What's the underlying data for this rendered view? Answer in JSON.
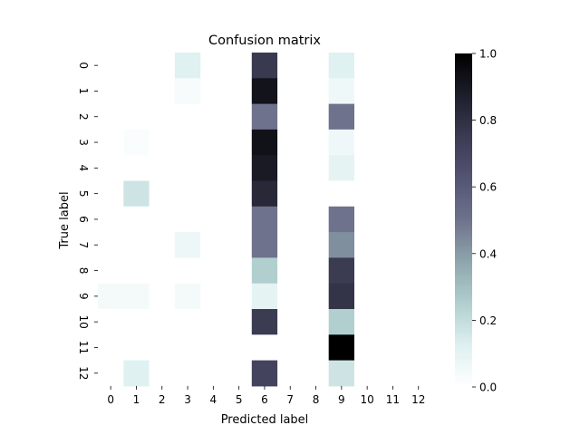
{
  "chart_data": {
    "type": "heatmap",
    "title": "Confusion matrix",
    "xlabel": "Predicted label",
    "ylabel": "True label",
    "x_categories": [
      "0",
      "1",
      "2",
      "3",
      "4",
      "5",
      "6",
      "7",
      "8",
      "9",
      "10",
      "11",
      "12"
    ],
    "y_categories": [
      "0",
      "1",
      "2",
      "3",
      "4",
      "5",
      "6",
      "7",
      "8",
      "9",
      "10",
      "11",
      "12"
    ],
    "values": [
      [
        0,
        0,
        0,
        0.12,
        0,
        0,
        0.76,
        0,
        0,
        0.12,
        0,
        0,
        0
      ],
      [
        0,
        0,
        0,
        0.03,
        0,
        0,
        0.92,
        0,
        0,
        0.06,
        0,
        0,
        0
      ],
      [
        0,
        0,
        0,
        0,
        0,
        0,
        0.5,
        0,
        0,
        0.5,
        0,
        0,
        0
      ],
      [
        0,
        0.02,
        0,
        0,
        0,
        0,
        0.93,
        0,
        0,
        0.06,
        0,
        0,
        0
      ],
      [
        0,
        0,
        0,
        0,
        0,
        0,
        0.89,
        0,
        0,
        0.1,
        0,
        0,
        0
      ],
      [
        0,
        0.17,
        0,
        0,
        0,
        0,
        0.83,
        0,
        0,
        0,
        0,
        0,
        0
      ],
      [
        0,
        0,
        0,
        0,
        0,
        0,
        0.5,
        0,
        0,
        0.5,
        0,
        0,
        0
      ],
      [
        0,
        0,
        0,
        0.07,
        0,
        0,
        0.5,
        0,
        0,
        0.43,
        0,
        0,
        0
      ],
      [
        0,
        0,
        0,
        0,
        0,
        0,
        0.25,
        0,
        0,
        0.75,
        0,
        0,
        0
      ],
      [
        0.04,
        0.04,
        0,
        0.04,
        0,
        0,
        0.1,
        0,
        0,
        0.78,
        0,
        0,
        0
      ],
      [
        0,
        0,
        0,
        0,
        0,
        0,
        0.75,
        0,
        0,
        0.25,
        0,
        0,
        0
      ],
      [
        0,
        0,
        0,
        0,
        0,
        0,
        0,
        0,
        0,
        1.0,
        0,
        0,
        0
      ],
      [
        0,
        0.12,
        0,
        0,
        0,
        0,
        0.71,
        0,
        0,
        0.17,
        0,
        0,
        0
      ]
    ],
    "colormap": "bone_r",
    "colorbar": {
      "range": [
        0.0,
        1.0
      ],
      "ticks": [
        0.0,
        0.2,
        0.4,
        0.6,
        0.8,
        1.0
      ],
      "tick_labels": [
        "0.0",
        "0.2",
        "0.4",
        "0.6",
        "0.8",
        "1.0"
      ]
    },
    "grid": false
  }
}
